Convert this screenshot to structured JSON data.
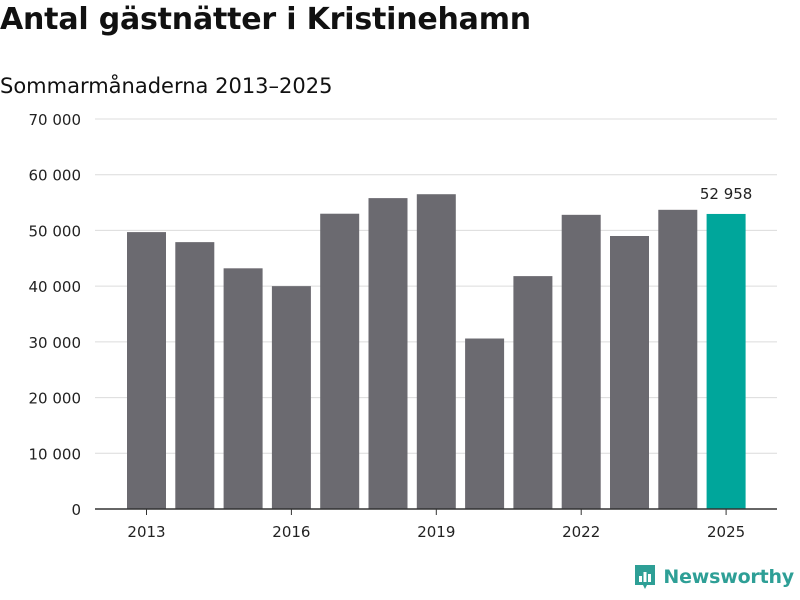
{
  "title": "Antal gästnätter i Kristinehamn",
  "subtitle": "Sommarmånaderna 2013–2025",
  "brand": {
    "name": "Newsworthy",
    "color": "#2e9f96",
    "icon": "newsworthy-logo-icon"
  },
  "chart_data": {
    "type": "bar",
    "categories": [
      "2013",
      "2014",
      "2015",
      "2016",
      "2017",
      "2018",
      "2019",
      "2020",
      "2021",
      "2022",
      "2023",
      "2024",
      "2025"
    ],
    "values": [
      49700,
      47900,
      43200,
      40000,
      53000,
      55800,
      56500,
      30600,
      41800,
      52800,
      49000,
      53700,
      52958
    ],
    "x_tick_labels": [
      "2013",
      "2016",
      "2019",
      "2022",
      "2025"
    ],
    "y_ticks": [
      0,
      10000,
      20000,
      30000,
      40000,
      50000,
      60000,
      70000
    ],
    "y_tick_labels": [
      "0",
      "10 000",
      "20 000",
      "30 000",
      "40 000",
      "50 000",
      "60 000",
      "70 000"
    ],
    "ylim": [
      0,
      70000
    ],
    "grid": true,
    "bar_color": "#6b6a70",
    "highlight_color": "#00a69b",
    "highlight_category": "2025",
    "annotation": "52 958",
    "xlabel": "",
    "ylabel": ""
  }
}
